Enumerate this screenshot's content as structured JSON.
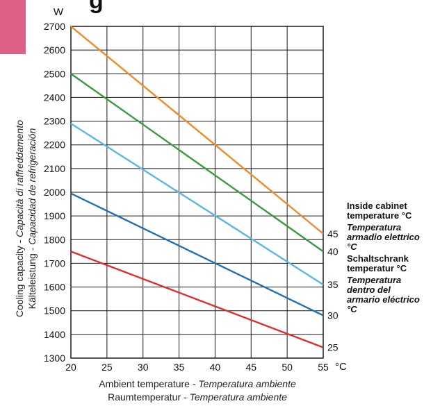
{
  "header": {
    "partial_title": "g"
  },
  "axis": {
    "y_unit": "W",
    "x_unit": "°C",
    "y_title_line1_plain": "Cooling capacity - ",
    "y_title_line1_italic": "Capacità di raffreddamento",
    "y_title_line2_plain": "Kälteleistung - ",
    "y_title_line2_italic": "Capacidad de refrigeración",
    "x_title_line1_plain": "Ambient temperature - ",
    "x_title_line1_italic": "Temperatura ambiente",
    "x_title_line2_plain": "Raumtemperatur - ",
    "x_title_line2_italic": "Temperatura ambiente"
  },
  "legend": {
    "line1": "Inside cabinet temperature °C",
    "line2": "Temperatura armadio elettrico °C",
    "line3": "Schaltschrank temperatur °C",
    "line4": "Temperatura dentro del armario eléctrico °C"
  },
  "chart_data": {
    "type": "line",
    "xlabel": "Ambient temperature - Temperatura ambiente / Raumtemperatur - Temperatura ambiente",
    "ylabel": "Cooling capacity - Capacità di raffreddamento / Kälteleistung - Capacidad de refrigeración",
    "x_unit": "°C",
    "y_unit": "W",
    "xlim": [
      20,
      55
    ],
    "ylim": [
      1300,
      2700
    ],
    "x_ticks": [
      20,
      25,
      30,
      35,
      40,
      45,
      50,
      55
    ],
    "y_ticks": [
      1300,
      1400,
      1500,
      1600,
      1700,
      1800,
      1900,
      2000,
      2100,
      2200,
      2300,
      2400,
      2500,
      2600,
      2700
    ],
    "grid": true,
    "series": [
      {
        "name": "45",
        "color": "#f08a24",
        "x": [
          20,
          55
        ],
        "y": [
          2700,
          1825
        ]
      },
      {
        "name": "40",
        "color": "#3a9a3c",
        "x": [
          20,
          55
        ],
        "y": [
          2500,
          1750
        ]
      },
      {
        "name": "35",
        "color": "#59b7e6",
        "x": [
          20,
          55
        ],
        "y": [
          2290,
          1610
        ]
      },
      {
        "name": "30",
        "color": "#1d6fb8",
        "x": [
          20,
          55
        ],
        "y": [
          1995,
          1480
        ]
      },
      {
        "name": "25",
        "color": "#e32929",
        "x": [
          20,
          55
        ],
        "y": [
          1750,
          1345
        ]
      }
    ]
  }
}
